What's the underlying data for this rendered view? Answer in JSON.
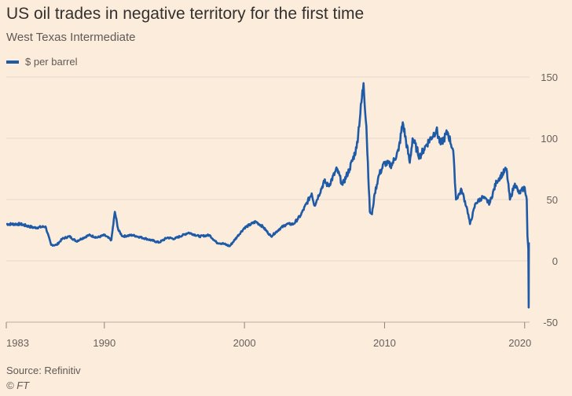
{
  "title": "US oil trades in negative territory for the first time",
  "subtitle": "West Texas Intermediate",
  "source": "Source: Refinitiv",
  "credit": "© FT",
  "chart_data": {
    "type": "line",
    "title": "US oil trades in negative territory for the first time",
    "subtitle": "West Texas Intermediate",
    "xlabel": "",
    "ylabel": "",
    "xlim": [
      1983,
      2020.35
    ],
    "ylim": [
      -50,
      150
    ],
    "x_ticks": [
      1983,
      1990,
      2000,
      2010,
      2020
    ],
    "y_ticks": [
      150,
      100,
      50,
      0,
      -50
    ],
    "grid": true,
    "legend_position": "top-left",
    "line_color": "#1f5aa6",
    "series": [
      {
        "name": "$ per barrel",
        "x": [
          1983.0,
          1984.0,
          1985.0,
          1985.8,
          1986.2,
          1986.6,
          1987.0,
          1987.5,
          1988.0,
          1988.9,
          1989.5,
          1990.0,
          1990.5,
          1990.75,
          1991.0,
          1991.3,
          1992.0,
          1993.0,
          1993.9,
          1994.5,
          1995.0,
          1996.0,
          1996.8,
          1997.5,
          1998.0,
          1998.5,
          1998.95,
          1999.5,
          2000.0,
          2000.8,
          2001.3,
          2001.9,
          2002.5,
          2003.0,
          2003.5,
          2004.0,
          2004.8,
          2005.0,
          2005.7,
          2006.0,
          2006.6,
          2007.0,
          2007.5,
          2008.0,
          2008.5,
          2008.7,
          2008.95,
          2009.1,
          2009.3,
          2009.6,
          2010.0,
          2010.5,
          2011.0,
          2011.3,
          2011.8,
          2012.0,
          2012.5,
          2013.0,
          2013.7,
          2014.0,
          2014.5,
          2014.9,
          2015.1,
          2015.5,
          2015.9,
          2016.1,
          2016.5,
          2017.0,
          2017.5,
          2018.0,
          2018.7,
          2018.95,
          2019.3,
          2019.6,
          2020.0,
          2020.15,
          2020.2,
          2020.26,
          2020.29,
          2020.3
        ],
        "values": [
          30,
          30,
          27,
          28,
          13,
          13,
          18,
          20,
          16,
          21,
          19,
          21,
          17,
          40,
          25,
          20,
          21,
          18,
          15,
          19,
          18,
          23,
          20,
          21,
          15,
          14,
          12,
          20,
          27,
          32,
          28,
          20,
          26,
          30,
          30,
          37,
          55,
          45,
          65,
          61,
          75,
          62,
          75,
          92,
          145,
          110,
          40,
          38,
          55,
          70,
          80,
          78,
          90,
          113,
          80,
          100,
          85,
          95,
          107,
          95,
          105,
          90,
          50,
          58,
          42,
          30,
          47,
          52,
          47,
          65,
          75,
          50,
          63,
          55,
          60,
          50,
          20,
          10,
          -38,
          15
        ]
      }
    ]
  }
}
